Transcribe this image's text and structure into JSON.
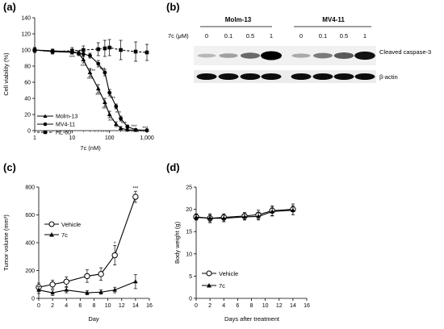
{
  "panels": {
    "a": "(a)",
    "b": "(b)",
    "c": "(c)",
    "d": "(d)"
  },
  "blot": {
    "groups": [
      "Molm-13",
      "MV4-11"
    ],
    "dose_label": "7c (μM)",
    "lanes": [
      "0",
      "0.1",
      "0.5",
      "1",
      "0",
      "0.1",
      "0.5",
      "1"
    ],
    "bands": [
      "Cleaved caspase-3",
      "β-actin"
    ],
    "caspase_intensity": [
      0.22,
      0.32,
      0.55,
      1.0,
      0.28,
      0.48,
      0.62,
      0.92
    ],
    "actin_intensity": [
      0.95,
      0.95,
      0.95,
      0.95,
      0.95,
      0.95,
      0.95,
      0.95
    ]
  },
  "chart_data": [
    {
      "panel": "a",
      "type": "line",
      "xscale": "log",
      "xlabel": "7c (nM)",
      "ylabel": "Cell viability (%)",
      "xlim": [
        1,
        1000
      ],
      "ylim": [
        0,
        140
      ],
      "xticks": [
        1,
        10,
        100,
        1000
      ],
      "xticklabels": [
        "1",
        "10",
        "100",
        "1,000"
      ],
      "yticks": [
        0,
        20,
        40,
        60,
        80,
        100,
        120,
        140
      ],
      "legend": [
        "Molm-13",
        "MV4-11",
        "HL-60"
      ],
      "legend_position": "bottom-left",
      "series": [
        {
          "name": "Molm-13",
          "marker": "triangle",
          "dash": false,
          "x": [
            1,
            3,
            10,
            15,
            20,
            30,
            50,
            75,
            100,
            150,
            200,
            300,
            500,
            1000
          ],
          "y": [
            100,
            99,
            98,
            96,
            88,
            72,
            52,
            35,
            20,
            8,
            3,
            1,
            0.5,
            0.5
          ],
          "err": [
            3,
            2,
            3,
            3,
            4,
            5,
            5,
            5,
            4,
            3,
            2,
            1,
            1,
            1
          ]
        },
        {
          "name": "MV4-11",
          "marker": "circle",
          "dash": false,
          "x": [
            1,
            3,
            10,
            15,
            20,
            30,
            50,
            75,
            100,
            150,
            200,
            300,
            500,
            1000
          ],
          "y": [
            100,
            98,
            97,
            96,
            95,
            93,
            83,
            72,
            47,
            30,
            15,
            5,
            1,
            0.5
          ],
          "err": [
            3,
            2,
            2,
            2,
            3,
            3,
            4,
            4,
            4,
            3,
            3,
            2,
            1,
            1
          ]
        },
        {
          "name": "HL-60",
          "marker": "square",
          "dash": true,
          "x": [
            1,
            3,
            10,
            20,
            50,
            75,
            100,
            200,
            500,
            1000
          ],
          "y": [
            100,
            98,
            99,
            100,
            101,
            102,
            103,
            100,
            98,
            97
          ],
          "err": [
            3,
            3,
            4,
            5,
            8,
            10,
            10,
            12,
            12,
            10
          ]
        }
      ],
      "annotations": [
        {
          "x": 10,
          "y": 91,
          "text": "***"
        },
        {
          "x": 20,
          "y": 80,
          "text": "***"
        },
        {
          "x": 30,
          "y": 64,
          "text": "***"
        },
        {
          "x": 50,
          "y": 44,
          "text": "***"
        },
        {
          "x": 75,
          "y": 27,
          "text": "***"
        },
        {
          "x": 110,
          "y": 12,
          "text": "***"
        },
        {
          "x": 35,
          "y": 74,
          "text": "***"
        },
        {
          "x": 65,
          "y": 76,
          "text": "***"
        },
        {
          "x": 120,
          "y": 40,
          "text": "***"
        },
        {
          "x": 170,
          "y": 22,
          "text": "***"
        },
        {
          "x": 240,
          "y": 9,
          "text": "***"
        },
        {
          "x": 450,
          "y": 5,
          "text": "***"
        },
        {
          "x": 900,
          "y": 3,
          "text": "***"
        }
      ]
    },
    {
      "panel": "c",
      "type": "line",
      "xlabel": "Day",
      "ylabel": "Tumor volume (mm³)",
      "xlim": [
        0,
        16
      ],
      "ylim": [
        0,
        800
      ],
      "xticks": [
        0,
        2,
        4,
        6,
        8,
        10,
        12,
        14,
        16
      ],
      "yticks": [
        0,
        200,
        400,
        600,
        800
      ],
      "legend": [
        "Vehicle",
        "7c"
      ],
      "legend_position": "left",
      "series": [
        {
          "name": "Vehicle",
          "marker": "open-circle",
          "dash": false,
          "x": [
            0,
            2,
            4,
            7,
            9,
            11,
            14
          ],
          "y": [
            80,
            100,
            120,
            160,
            175,
            310,
            730
          ],
          "err": [
            30,
            30,
            35,
            45,
            45,
            70,
            40
          ]
        },
        {
          "name": "7c",
          "marker": "triangle",
          "dash": false,
          "x": [
            0,
            2,
            4,
            7,
            9,
            11,
            14
          ],
          "y": [
            60,
            40,
            60,
            40,
            45,
            60,
            120
          ],
          "err": [
            25,
            20,
            20,
            15,
            15,
            20,
            50
          ]
        }
      ],
      "annotations": [
        {
          "x": 11,
          "y": 395,
          "text": "*"
        },
        {
          "x": 14,
          "y": 790,
          "text": "***"
        }
      ]
    },
    {
      "panel": "d",
      "type": "line",
      "xlabel": "Days after treatment",
      "ylabel": "Body weight (g)",
      "xlim": [
        0,
        16
      ],
      "ylim": [
        0,
        25
      ],
      "xticks": [
        0,
        2,
        4,
        6,
        8,
        10,
        12,
        14,
        16
      ],
      "yticks": [
        0,
        5,
        10,
        15,
        20,
        25
      ],
      "legend": [
        "Vehicle",
        "7c"
      ],
      "legend_position": "bottom-left",
      "series": [
        {
          "name": "Vehicle",
          "marker": "open-circle",
          "dash": false,
          "x": [
            0,
            2,
            4,
            7,
            9,
            11,
            14
          ],
          "y": [
            18.3,
            18.0,
            18.2,
            18.5,
            18.8,
            19.7,
            20.0
          ],
          "err": [
            0.7,
            1.0,
            0.8,
            0.8,
            1.0,
            1.1,
            1.2
          ]
        },
        {
          "name": "7c",
          "marker": "triangle",
          "dash": false,
          "x": [
            0,
            2,
            4,
            7,
            9,
            11,
            14
          ],
          "y": [
            18.2,
            18.0,
            18.0,
            18.3,
            18.4,
            19.5,
            19.8
          ],
          "err": [
            0.6,
            0.8,
            0.8,
            0.7,
            0.8,
            1.0,
            1.0
          ]
        }
      ],
      "annotations": []
    }
  ]
}
